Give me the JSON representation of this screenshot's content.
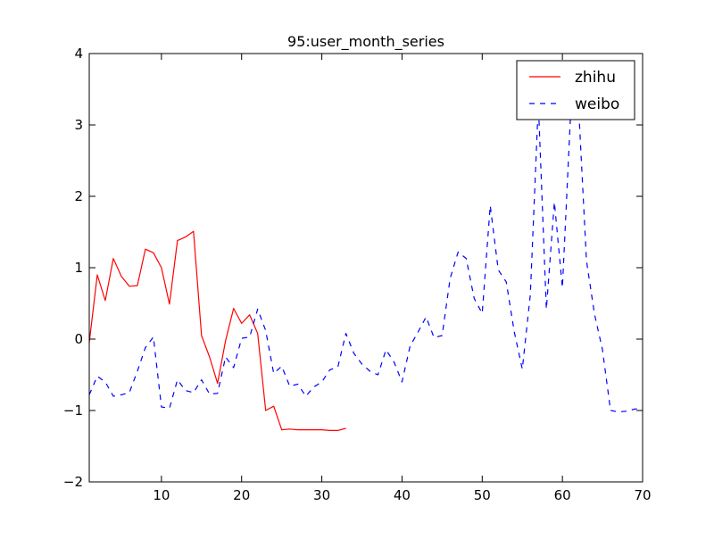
{
  "chart_data": {
    "type": "line",
    "title": "95:user_month_series",
    "xlabel": "",
    "ylabel": "",
    "xlim": [
      1,
      70
    ],
    "ylim": [
      -2,
      4
    ],
    "xticks": [
      10,
      20,
      30,
      40,
      50,
      60,
      70
    ],
    "yticks": [
      -2,
      -1,
      0,
      1,
      2,
      3,
      4
    ],
    "xtick_labels": [
      "10",
      "20",
      "30",
      "40",
      "50",
      "60",
      "70"
    ],
    "ytick_labels": [
      "−2",
      "−1",
      "0",
      "1",
      "2",
      "3",
      "4"
    ],
    "grid": false,
    "legend": "top-right",
    "series": [
      {
        "name": "zhihu",
        "color": "#ff0000",
        "line_style": "solid",
        "x": [
          1,
          2,
          3,
          4,
          5,
          6,
          7,
          8,
          9,
          10,
          11,
          12,
          13,
          14,
          15,
          16,
          17,
          18,
          19,
          20,
          21,
          22,
          23,
          24,
          25,
          26,
          27,
          28,
          29,
          30,
          31,
          32,
          33
        ],
        "y": [
          -0.05,
          0.9,
          0.54,
          1.13,
          0.88,
          0.74,
          0.75,
          1.26,
          1.21,
          1.0,
          0.49,
          1.38,
          1.43,
          1.51,
          0.05,
          -0.25,
          -0.62,
          -0.02,
          0.43,
          0.22,
          0.34,
          0.08,
          -1.0,
          -0.94,
          -1.27,
          -1.26,
          -1.27,
          -1.27,
          -1.27,
          -1.27,
          -1.28,
          -1.28,
          -1.25
        ]
      },
      {
        "name": "weibo",
        "color": "#0000ff",
        "line_style": "dashed",
        "x": [
          1,
          2,
          3,
          4,
          5,
          6,
          7,
          8,
          9,
          10,
          11,
          12,
          13,
          14,
          15,
          16,
          17,
          18,
          19,
          20,
          21,
          22,
          23,
          24,
          25,
          26,
          27,
          28,
          29,
          30,
          31,
          32,
          33,
          34,
          35,
          36,
          37,
          38,
          39,
          40,
          41,
          42,
          43,
          44,
          45,
          46,
          47,
          48,
          49,
          50,
          51,
          52,
          53,
          54,
          55,
          56,
          57,
          58,
          59,
          60,
          61,
          62,
          63,
          64,
          65,
          66,
          67,
          68,
          69,
          70
        ],
        "y": [
          -0.78,
          -0.52,
          -0.6,
          -0.8,
          -0.78,
          -0.75,
          -0.45,
          -0.12,
          0.03,
          -0.95,
          -0.97,
          -0.57,
          -0.72,
          -0.75,
          -0.57,
          -0.77,
          -0.76,
          -0.25,
          -0.4,
          0.01,
          0.03,
          0.42,
          0.12,
          -0.48,
          -0.38,
          -0.66,
          -0.63,
          -0.8,
          -0.67,
          -0.6,
          -0.43,
          -0.39,
          0.08,
          -0.2,
          -0.35,
          -0.45,
          -0.5,
          -0.15,
          -0.32,
          -0.6,
          -0.1,
          0.1,
          0.31,
          0.02,
          0.05,
          0.85,
          1.22,
          1.13,
          0.57,
          0.36,
          1.87,
          0.97,
          0.8,
          0.1,
          -0.42,
          0.62,
          3.3,
          0.42,
          1.92,
          0.72,
          3.1,
          3.3,
          1.1,
          0.35,
          -0.15,
          -1.0,
          -1.02,
          -1.01,
          -0.98,
          -0.97
        ]
      }
    ]
  }
}
